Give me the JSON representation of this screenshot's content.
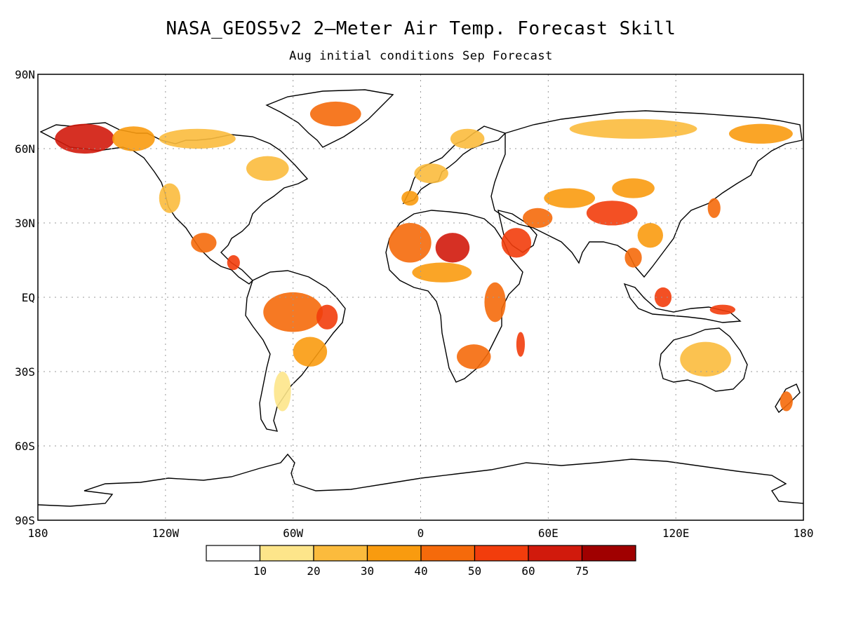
{
  "title": "NASA_GEOS5v2 2—Meter Air Temp. Forecast Skill",
  "subtitle": "Aug initial conditions  Sep Forecast",
  "map": {
    "projection": "cylindrical-equidistant",
    "lon_range": [
      -180,
      180
    ],
    "lat_range": [
      -90,
      90
    ],
    "grid": true,
    "lat_ticks": [
      {
        "value": 90,
        "label": "90N"
      },
      {
        "value": 60,
        "label": "60N"
      },
      {
        "value": 30,
        "label": "30N"
      },
      {
        "value": 0,
        "label": "EQ"
      },
      {
        "value": -30,
        "label": "30S"
      },
      {
        "value": -60,
        "label": "60S"
      },
      {
        "value": -90,
        "label": "90S"
      }
    ],
    "lon_ticks": [
      {
        "value": -180,
        "label": "180"
      },
      {
        "value": -120,
        "label": "120W"
      },
      {
        "value": -60,
        "label": "60W"
      },
      {
        "value": 0,
        "label": "0"
      },
      {
        "value": 60,
        "label": "60E"
      },
      {
        "value": 120,
        "label": "120E"
      },
      {
        "value": 180,
        "label": "180"
      }
    ]
  },
  "colorbar": {
    "labels": [
      "10",
      "20",
      "30",
      "40",
      "50",
      "60",
      "75"
    ],
    "colors": [
      "#ffffff",
      "#fde58a",
      "#fbbb3d",
      "#f99b0f",
      "#f56a0b",
      "#f23d0c",
      "#d11a0c",
      "#a00000"
    ]
  },
  "land_color": "#ffffff",
  "regions": [
    {
      "name": "alaska",
      "lon": -158,
      "lat": 64,
      "rlon": 14,
      "rlat": 6,
      "level": 6
    },
    {
      "name": "yukon",
      "lon": -135,
      "lat": 64,
      "rlon": 10,
      "rlat": 5,
      "level": 3
    },
    {
      "name": "canada-north",
      "lon": -105,
      "lat": 64,
      "rlon": 18,
      "rlat": 4,
      "level": 2
    },
    {
      "name": "greenland",
      "lon": -40,
      "lat": 74,
      "rlon": 12,
      "rlat": 5,
      "level": 4
    },
    {
      "name": "quebec",
      "lon": -72,
      "lat": 52,
      "rlon": 10,
      "rlat": 5,
      "level": 2
    },
    {
      "name": "western-us",
      "lon": -118,
      "lat": 40,
      "rlon": 5,
      "rlat": 6,
      "level": 2
    },
    {
      "name": "mexico",
      "lon": -102,
      "lat": 22,
      "rlon": 6,
      "rlat": 4,
      "level": 4
    },
    {
      "name": "central-america",
      "lon": -88,
      "lat": 14,
      "rlon": 3,
      "rlat": 3,
      "level": 5
    },
    {
      "name": "amazon",
      "lon": -60,
      "lat": -6,
      "rlon": 14,
      "rlat": 8,
      "level": 4
    },
    {
      "name": "brazil-east",
      "lon": -44,
      "lat": -8,
      "rlon": 5,
      "rlat": 5,
      "level": 5
    },
    {
      "name": "brazil-south",
      "lon": -52,
      "lat": -22,
      "rlon": 8,
      "rlat": 6,
      "level": 3
    },
    {
      "name": "argentina",
      "lon": -65,
      "lat": -38,
      "rlon": 4,
      "rlat": 8,
      "level": 1
    },
    {
      "name": "western-europe",
      "lon": 5,
      "lat": 50,
      "rlon": 8,
      "rlat": 4,
      "level": 2
    },
    {
      "name": "scandinavia",
      "lon": 22,
      "lat": 64,
      "rlon": 8,
      "rlat": 4,
      "level": 2
    },
    {
      "name": "iberia",
      "lon": -5,
      "lat": 40,
      "rlon": 4,
      "rlat": 3,
      "level": 3
    },
    {
      "name": "sahara-west",
      "lon": -5,
      "lat": 22,
      "rlon": 10,
      "rlat": 8,
      "level": 4
    },
    {
      "name": "sahara-central",
      "lon": 15,
      "lat": 20,
      "rlon": 8,
      "rlat": 6,
      "level": 6
    },
    {
      "name": "sahel",
      "lon": 10,
      "lat": 10,
      "rlon": 14,
      "rlat": 4,
      "level": 3
    },
    {
      "name": "east-africa",
      "lon": 35,
      "lat": -2,
      "rlon": 5,
      "rlat": 8,
      "level": 4
    },
    {
      "name": "southern-africa",
      "lon": 25,
      "lat": -24,
      "rlon": 8,
      "rlat": 5,
      "level": 4
    },
    {
      "name": "madagascar",
      "lon": 47,
      "lat": -19,
      "rlon": 2,
      "rlat": 5,
      "level": 5
    },
    {
      "name": "arabia",
      "lon": 45,
      "lat": 22,
      "rlon": 7,
      "rlat": 6,
      "level": 5
    },
    {
      "name": "iran",
      "lon": 55,
      "lat": 32,
      "rlon": 7,
      "rlat": 4,
      "level": 4
    },
    {
      "name": "central-asia",
      "lon": 70,
      "lat": 40,
      "rlon": 12,
      "rlat": 4,
      "level": 3
    },
    {
      "name": "tibet",
      "lon": 90,
      "lat": 34,
      "rlon": 12,
      "rlat": 5,
      "level": 5
    },
    {
      "name": "mongolia",
      "lon": 100,
      "lat": 44,
      "rlon": 10,
      "rlat": 4,
      "level": 3
    },
    {
      "name": "china-south",
      "lon": 108,
      "lat": 25,
      "rlon": 6,
      "rlat": 5,
      "level": 3
    },
    {
      "name": "siberia",
      "lon": 100,
      "lat": 68,
      "rlon": 30,
      "rlat": 4,
      "level": 2
    },
    {
      "name": "russia-east",
      "lon": 160,
      "lat": 66,
      "rlon": 15,
      "rlat": 4,
      "level": 3
    },
    {
      "name": "se-asia",
      "lon": 100,
      "lat": 16,
      "rlon": 4,
      "rlat": 4,
      "level": 4
    },
    {
      "name": "borneo",
      "lon": 114,
      "lat": 0,
      "rlon": 4,
      "rlat": 4,
      "level": 5
    },
    {
      "name": "new-guinea",
      "lon": 142,
      "lat": -5,
      "rlon": 6,
      "rlat": 2,
      "level": 5
    },
    {
      "name": "australia",
      "lon": 134,
      "lat": -25,
      "rlon": 12,
      "rlat": 7,
      "level": 2
    },
    {
      "name": "new-zealand",
      "lon": 172,
      "lat": -42,
      "rlon": 3,
      "rlat": 4,
      "level": 4
    },
    {
      "name": "japan",
      "lon": 138,
      "lat": 36,
      "rlon": 3,
      "rlat": 4,
      "level": 4
    }
  ]
}
